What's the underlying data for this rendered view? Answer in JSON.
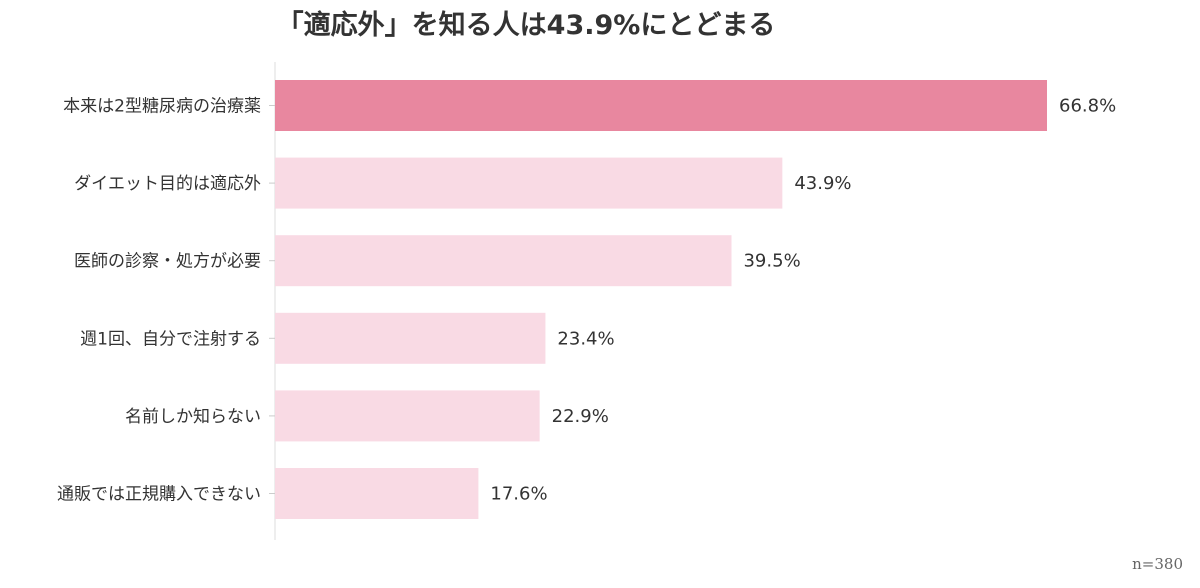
{
  "chart_data": {
    "type": "bar",
    "orientation": "horizontal",
    "title": "「適応外」を知る人は43.9%にとどまる",
    "categories": [
      "本来は2型糖尿病の治療薬",
      "ダイエット目的は適応外",
      "医師の診察・処方が必要",
      "週1回、自分で注射する",
      "名前しか知らない",
      "通販では正規購入できない"
    ],
    "values": [
      66.8,
      43.9,
      39.5,
      23.4,
      22.9,
      17.6
    ],
    "value_labels": [
      "66.8%",
      "43.9%",
      "39.5%",
      "23.4%",
      "22.9%",
      "17.6%"
    ],
    "xlim": [
      0,
      100
    ],
    "grid": false,
    "highlight_index": 0,
    "colors": {
      "highlight": "#e8879f",
      "default": "#f9dae4"
    },
    "note": "n=380"
  }
}
